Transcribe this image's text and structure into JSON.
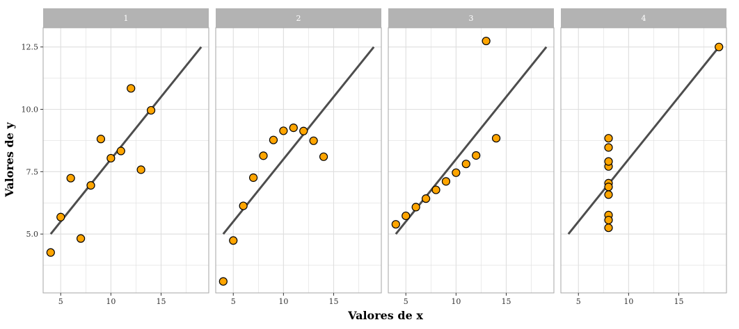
{
  "chart_data": {
    "type": "scatter",
    "layout": "facets-4",
    "xlabel": "Valores de x",
    "ylabel": "Valores de y",
    "xlim": [
      3.25,
      19.75
    ],
    "ylim": [
      2.64,
      13.27
    ],
    "x_ticks": [
      5,
      10,
      15
    ],
    "y_ticks": [
      5.0,
      7.5,
      10.0,
      12.5
    ],
    "y_tick_labels": [
      "5.0",
      "7.5",
      "10.0",
      "12.5"
    ],
    "grid": true,
    "fit_line": {
      "intercept": 3.0,
      "slope": 0.5,
      "x_range": [
        4,
        19
      ]
    },
    "colors": {
      "point_fill": "#FFA500",
      "point_stroke": "#000000",
      "line": "#4D4D4D",
      "strip": "#B3B3B3",
      "grid": "#DEDEDE",
      "panel_border": "#A6A6A6"
    },
    "panels": [
      {
        "label": "1",
        "x": [
          10,
          8,
          13,
          9,
          11,
          14,
          6,
          4,
          12,
          7,
          5
        ],
        "y": [
          8.04,
          6.95,
          7.58,
          8.81,
          8.33,
          9.96,
          7.24,
          4.26,
          10.84,
          4.82,
          5.68
        ]
      },
      {
        "label": "2",
        "x": [
          10,
          8,
          13,
          9,
          11,
          14,
          6,
          4,
          12,
          7,
          5
        ],
        "y": [
          9.14,
          8.14,
          8.74,
          8.77,
          9.26,
          8.1,
          6.13,
          3.1,
          9.13,
          7.26,
          4.74
        ]
      },
      {
        "label": "3",
        "x": [
          10,
          8,
          13,
          9,
          11,
          14,
          6,
          4,
          12,
          7,
          5
        ],
        "y": [
          7.46,
          6.77,
          12.74,
          7.11,
          7.81,
          8.84,
          6.08,
          5.39,
          8.15,
          6.42,
          5.73
        ]
      },
      {
        "label": "4",
        "x": [
          8,
          8,
          8,
          8,
          8,
          8,
          8,
          19,
          8,
          8,
          8
        ],
        "y": [
          6.58,
          5.76,
          7.71,
          8.84,
          8.47,
          7.04,
          5.25,
          12.5,
          5.56,
          7.91,
          6.89
        ]
      }
    ]
  }
}
